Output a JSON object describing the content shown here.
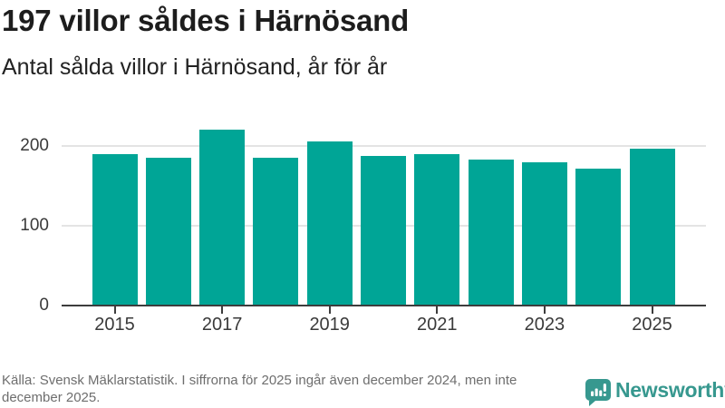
{
  "header": {
    "title": "197 villor såldes i Härnösand",
    "subtitle": "Antal sålda villor i Härnösand, år för år"
  },
  "chart_data": {
    "type": "bar",
    "title": "197 villor såldes i Härnösand",
    "subtitle": "Antal sålda villor i Härnösand, år för år",
    "categories": [
      "2015",
      "2016",
      "2017",
      "2018",
      "2019",
      "2020",
      "2021",
      "2022",
      "2023",
      "2024",
      "2025"
    ],
    "values": [
      190,
      185,
      221,
      185,
      206,
      187,
      190,
      183,
      180,
      172,
      197
    ],
    "xlabel": "",
    "ylabel": "",
    "ylim": [
      0,
      230
    ],
    "yticks": [
      0,
      100,
      200
    ],
    "xtick_labels": [
      "2015",
      "2017",
      "2019",
      "2021",
      "2023",
      "2025"
    ],
    "grid": "horizontal",
    "legend": "none",
    "bar_color": "#00a596"
  },
  "footer": {
    "source": "Källa: Svensk Mäklarstatistik. I siffrorna för 2025 ingår även december 2024, men inte december 2025.",
    "brand": {
      "name": "Newsworthy",
      "color": "#37988f",
      "icon": "bar-chart-speech-bubble-icon"
    }
  },
  "colors": {
    "bar": "#00a596",
    "axis": "#3d3d3d",
    "grid": "#e4e4e4",
    "title_text": "#1d1d1d",
    "tick_text": "#3a3a3a",
    "muted_text": "#6e6e6e",
    "background": "#ffffff"
  }
}
